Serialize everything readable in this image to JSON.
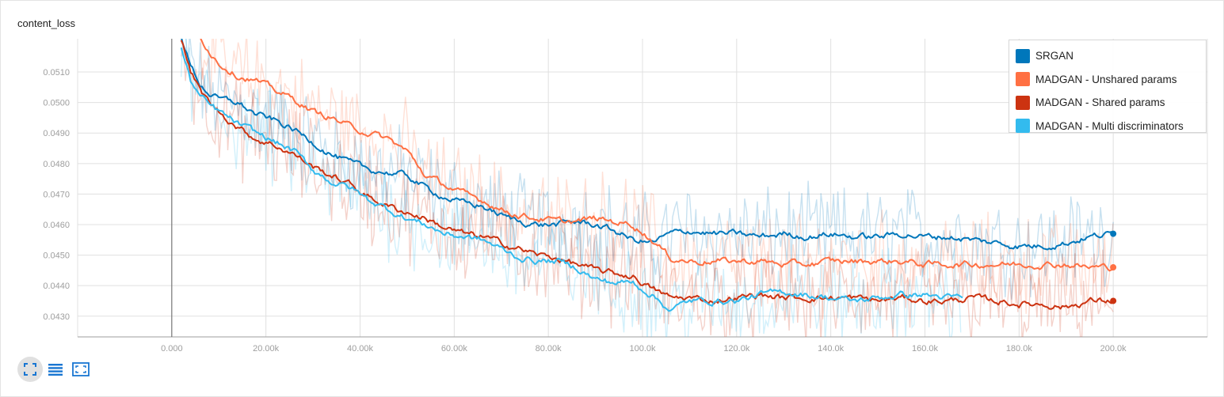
{
  "card": {
    "title": "content_loss"
  },
  "toolbar": {
    "buttons": [
      {
        "icon": "fit-to-data-icon",
        "active": true
      },
      {
        "icon": "toggle-log-scale-icon",
        "active": false
      },
      {
        "icon": "expand-chart-icon",
        "active": false
      }
    ],
    "color": "#1976d2"
  },
  "chart_data": {
    "type": "line",
    "title": "content_loss",
    "xlabel": "",
    "ylabel": "",
    "xlim": [
      -20000,
      220000
    ],
    "ylim": [
      0.04232,
      0.05209
    ],
    "x_ticks": [
      "0.000",
      "20.00k",
      "40.00k",
      "60.00k",
      "80.00k",
      "100.0k",
      "120.0k",
      "140.0k",
      "160.0k",
      "180.0k",
      "200.0k"
    ],
    "y_ticks": [
      "0.0430",
      "0.0440",
      "0.0450",
      "0.0460",
      "0.0470",
      "0.0480",
      "0.0490",
      "0.0500",
      "0.0510"
    ],
    "grid": true,
    "legend_position": "top-right",
    "series": [
      {
        "name": "SRGAN",
        "color": "#0077bb",
        "end_marker": true,
        "points": [
          [
            2000,
            0.0522
          ],
          [
            4000,
            0.0512
          ],
          [
            6000,
            0.0506
          ],
          [
            8000,
            0.0503
          ],
          [
            10000,
            0.0501
          ],
          [
            14000,
            0.05
          ],
          [
            18000,
            0.0496
          ],
          [
            22000,
            0.0494
          ],
          [
            26000,
            0.0491
          ],
          [
            30000,
            0.0487
          ],
          [
            34000,
            0.0483
          ],
          [
            38000,
            0.048
          ],
          [
            42000,
            0.0478
          ],
          [
            46000,
            0.0477
          ],
          [
            50000,
            0.0476
          ],
          [
            54000,
            0.0472
          ],
          [
            58000,
            0.0469
          ],
          [
            62000,
            0.0467
          ],
          [
            66000,
            0.0466
          ],
          [
            70000,
            0.0463
          ],
          [
            74000,
            0.0461
          ],
          [
            78000,
            0.046
          ],
          [
            82000,
            0.046
          ],
          [
            86000,
            0.0461
          ],
          [
            90000,
            0.046
          ],
          [
            94000,
            0.0458
          ],
          [
            98000,
            0.0455
          ],
          [
            102000,
            0.0454
          ],
          [
            106000,
            0.0457
          ],
          [
            110000,
            0.0458
          ],
          [
            115000,
            0.0457
          ],
          [
            120000,
            0.0457
          ],
          [
            125000,
            0.0456
          ],
          [
            130000,
            0.0457
          ],
          [
            135000,
            0.0456
          ],
          [
            140000,
            0.0457
          ],
          [
            145000,
            0.0456
          ],
          [
            150000,
            0.0456
          ],
          [
            155000,
            0.0457
          ],
          [
            160000,
            0.0456
          ],
          [
            165000,
            0.0456
          ],
          [
            170000,
            0.0455
          ],
          [
            175000,
            0.0454
          ],
          [
            180000,
            0.0453
          ],
          [
            185000,
            0.0453
          ],
          [
            190000,
            0.0454
          ],
          [
            195000,
            0.0456
          ],
          [
            200000,
            0.0457
          ]
        ]
      },
      {
        "name": "MADGAN - Unshared params",
        "color": "#ff7043",
        "end_marker": true,
        "points": [
          [
            6000,
            0.0522
          ],
          [
            8000,
            0.0517
          ],
          [
            10000,
            0.0513
          ],
          [
            14000,
            0.0509
          ],
          [
            18000,
            0.0507
          ],
          [
            22000,
            0.0504
          ],
          [
            26000,
            0.0501
          ],
          [
            30000,
            0.0497
          ],
          [
            34000,
            0.0495
          ],
          [
            38000,
            0.0492
          ],
          [
            42000,
            0.049
          ],
          [
            46000,
            0.0488
          ],
          [
            50000,
            0.0484
          ],
          [
            54000,
            0.0476
          ],
          [
            58000,
            0.0473
          ],
          [
            62000,
            0.047
          ],
          [
            66000,
            0.0468
          ],
          [
            70000,
            0.0465
          ],
          [
            74000,
            0.0463
          ],
          [
            78000,
            0.0462
          ],
          [
            82000,
            0.0461
          ],
          [
            86000,
            0.0461
          ],
          [
            90000,
            0.0462
          ],
          [
            94000,
            0.0461
          ],
          [
            98000,
            0.046
          ],
          [
            102000,
            0.0455
          ],
          [
            106000,
            0.0449
          ],
          [
            110000,
            0.0448
          ],
          [
            115000,
            0.0448
          ],
          [
            120000,
            0.0448
          ],
          [
            125000,
            0.0448
          ],
          [
            130000,
            0.0447
          ],
          [
            135000,
            0.0447
          ],
          [
            140000,
            0.0448
          ],
          [
            145000,
            0.0448
          ],
          [
            150000,
            0.0448
          ],
          [
            155000,
            0.0448
          ],
          [
            160000,
            0.0447
          ],
          [
            165000,
            0.0447
          ],
          [
            170000,
            0.0447
          ],
          [
            175000,
            0.0447
          ],
          [
            180000,
            0.0447
          ],
          [
            185000,
            0.0447
          ],
          [
            190000,
            0.0447
          ],
          [
            195000,
            0.0446
          ],
          [
            200000,
            0.0446
          ]
        ]
      },
      {
        "name": "MADGAN - Shared params",
        "color": "#cc3311",
        "end_marker": true,
        "points": [
          [
            2000,
            0.0521
          ],
          [
            4000,
            0.051
          ],
          [
            6000,
            0.0504
          ],
          [
            8000,
            0.05
          ],
          [
            10000,
            0.0497
          ],
          [
            14000,
            0.0492
          ],
          [
            18000,
            0.0488
          ],
          [
            22000,
            0.0486
          ],
          [
            26000,
            0.0483
          ],
          [
            30000,
            0.0479
          ],
          [
            34000,
            0.0476
          ],
          [
            38000,
            0.0473
          ],
          [
            42000,
            0.0469
          ],
          [
            46000,
            0.0466
          ],
          [
            50000,
            0.0464
          ],
          [
            54000,
            0.0462
          ],
          [
            58000,
            0.0459
          ],
          [
            62000,
            0.0457
          ],
          [
            66000,
            0.0456
          ],
          [
            70000,
            0.0454
          ],
          [
            74000,
            0.0452
          ],
          [
            78000,
            0.045
          ],
          [
            82000,
            0.0449
          ],
          [
            86000,
            0.0447
          ],
          [
            90000,
            0.0445
          ],
          [
            94000,
            0.0444
          ],
          [
            98000,
            0.0443
          ],
          [
            102000,
            0.0439
          ],
          [
            106000,
            0.0436
          ],
          [
            110000,
            0.0436
          ],
          [
            115000,
            0.0435
          ],
          [
            120000,
            0.0436
          ],
          [
            125000,
            0.0437
          ],
          [
            130000,
            0.0436
          ],
          [
            135000,
            0.0436
          ],
          [
            140000,
            0.0436
          ],
          [
            145000,
            0.0436
          ],
          [
            150000,
            0.0435
          ],
          [
            155000,
            0.0436
          ],
          [
            160000,
            0.0435
          ],
          [
            165000,
            0.0435
          ],
          [
            170000,
            0.0436
          ],
          [
            175000,
            0.0435
          ],
          [
            180000,
            0.0434
          ],
          [
            185000,
            0.0434
          ],
          [
            190000,
            0.0433
          ],
          [
            195000,
            0.0435
          ],
          [
            200000,
            0.0435
          ]
        ]
      },
      {
        "name": "MADGAN - Multi discriminators",
        "color": "#33bbee",
        "end_marker": false,
        "points": [
          [
            2000,
            0.0518
          ],
          [
            4000,
            0.0507
          ],
          [
            6000,
            0.0502
          ],
          [
            8000,
            0.0499
          ],
          [
            10000,
            0.0497
          ],
          [
            14000,
            0.0493
          ],
          [
            18000,
            0.049
          ],
          [
            22000,
            0.0487
          ],
          [
            26000,
            0.0484
          ],
          [
            30000,
            0.0478
          ],
          [
            34000,
            0.0474
          ],
          [
            38000,
            0.0472
          ],
          [
            42000,
            0.0468
          ],
          [
            46000,
            0.0465
          ],
          [
            50000,
            0.0462
          ],
          [
            54000,
            0.046
          ],
          [
            58000,
            0.0457
          ],
          [
            62000,
            0.0456
          ],
          [
            66000,
            0.0455
          ],
          [
            70000,
            0.0452
          ],
          [
            74000,
            0.0449
          ],
          [
            78000,
            0.0448
          ],
          [
            82000,
            0.0448
          ],
          [
            86000,
            0.0446
          ],
          [
            90000,
            0.0442
          ],
          [
            94000,
            0.0441
          ],
          [
            98000,
            0.0441
          ],
          [
            102000,
            0.0437
          ],
          [
            106000,
            0.0432
          ],
          [
            110000,
            0.0435
          ],
          [
            115000,
            0.0435
          ],
          [
            120000,
            0.0435
          ],
          [
            125000,
            0.0437
          ],
          [
            130000,
            0.0438
          ],
          [
            135000,
            0.0437
          ],
          [
            140000,
            0.0436
          ],
          [
            145000,
            0.0435
          ],
          [
            150000,
            0.0436
          ],
          [
            155000,
            0.0437
          ],
          [
            160000,
            0.0437
          ],
          [
            165000,
            0.0436
          ],
          [
            168000,
            0.0436
          ]
        ]
      }
    ]
  }
}
